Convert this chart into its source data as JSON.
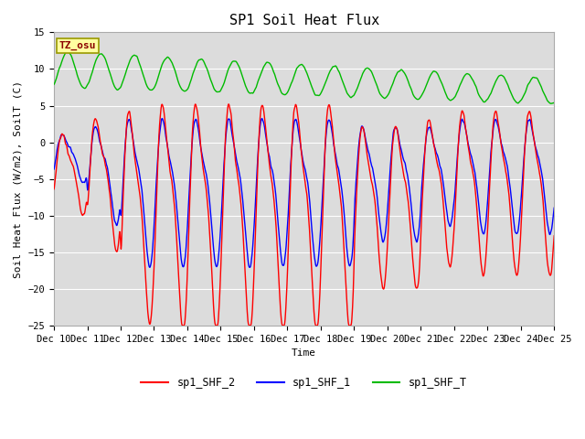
{
  "title": "SP1 Soil Heat Flux",
  "xlabel": "Time",
  "ylabel": "Soil Heat Flux (W/m2), SoilT (C)",
  "ylim": [
    -25,
    15
  ],
  "yticks": [
    -25,
    -20,
    -15,
    -10,
    -5,
    0,
    5,
    10,
    15
  ],
  "xtick_labels": [
    "Dec 10",
    "Dec 11",
    "Dec 12",
    "Dec 13",
    "Dec 14",
    "Dec 15",
    "Dec 16",
    "Dec 17",
    "Dec 18",
    "Dec 19",
    "Dec 20",
    "Dec 21",
    "Dec 22",
    "Dec 23",
    "Dec 24",
    "Dec 25"
  ],
  "color_shf2": "#FF0000",
  "color_shf1": "#0000FF",
  "color_shft": "#00BB00",
  "legend_labels": [
    "sp1_SHF_2",
    "sp1_SHF_1",
    "sp1_SHF_T"
  ],
  "tz_label": "TZ_osu",
  "bg_color": "#DCDCDC",
  "grid_color": "#FFFFFF",
  "title_fontsize": 11,
  "label_fontsize": 8,
  "tick_fontsize": 7.5
}
